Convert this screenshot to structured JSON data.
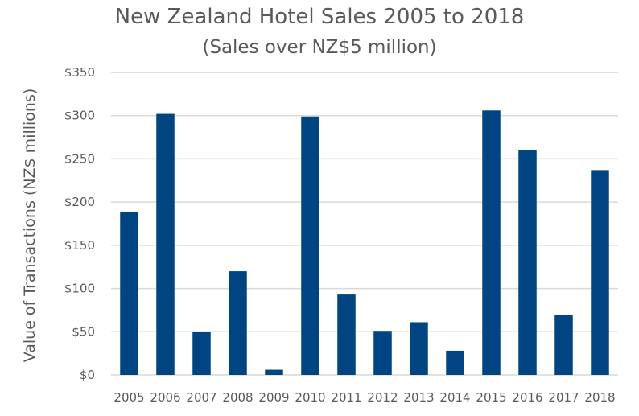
{
  "chart_data": {
    "type": "bar",
    "title": "New Zealand Hotel Sales 2005 to 2018",
    "subtitle": "(Sales over NZ$5 million)",
    "xlabel": "",
    "ylabel": "Value of Transactions (NZ$ millions)",
    "categories": [
      "2005",
      "2006",
      "2007",
      "2008",
      "2009",
      "2010",
      "2011",
      "2012",
      "2013",
      "2014",
      "2015",
      "2016",
      "2017",
      "2018"
    ],
    "values": [
      189,
      302,
      50,
      120,
      6,
      299,
      93,
      51,
      61,
      28,
      306,
      260,
      69,
      237
    ],
    "ylim": [
      0,
      350
    ],
    "yticks": [
      0,
      50,
      100,
      150,
      200,
      250,
      300,
      350
    ],
    "ytick_labels": [
      "$0",
      "$50",
      "$100",
      "$150",
      "$200",
      "$250",
      "$300",
      "$350"
    ],
    "grid": true,
    "bar_color": "#004481",
    "grid_color": "#d9d9d9"
  }
}
